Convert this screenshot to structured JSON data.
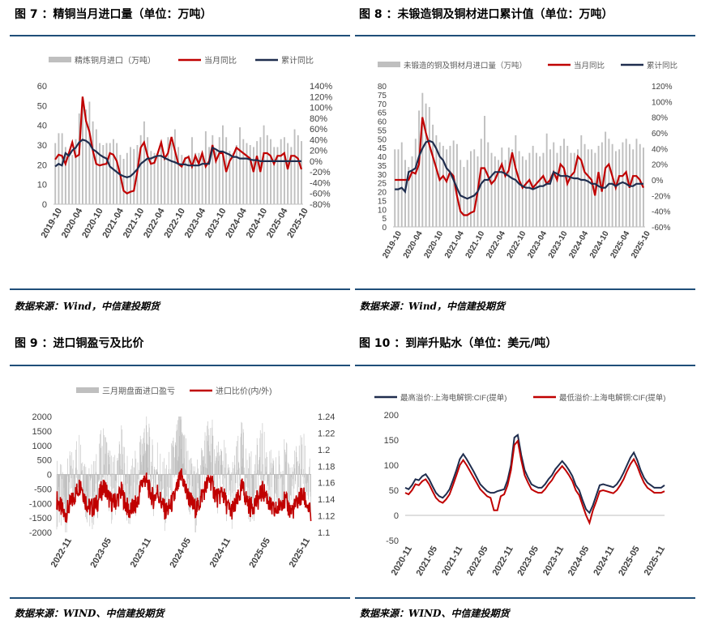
{
  "figures": [
    {
      "id": "fig7",
      "title": "图 7 ：精铜当月进口量（单位：万吨）",
      "source": "数据来源：Wind，中信建投期货"
    },
    {
      "id": "fig8",
      "title": "图 8 ：未锻造铜及铜材进口累计值（单位：万吨）",
      "source": "数据来源：Wind，中信建投期货"
    },
    {
      "id": "fig9",
      "title": "图 9 ：进口铜盈亏及比价",
      "source": "数据来源：WIND、中信建投期货"
    },
    {
      "id": "fig10",
      "title": "图 10 ：到岸升贴水（单位：美元/吨）",
      "source": "数据来源：WIND、中信建投期货"
    }
  ],
  "colors": {
    "rule": "#1f4e79",
    "bar": "#bfbfbf",
    "red": "#c00000",
    "navy": "#1f2d4e"
  },
  "chart_data": [
    {
      "type": "bar",
      "legend": [
        "精炼铜月进口（万吨）",
        "当月同比",
        "累计同比"
      ],
      "x_ticks": [
        "2019-10",
        "2020-04",
        "2020-10",
        "2021-04",
        "2021-10",
        "2022-04",
        "2022-10",
        "2023-04",
        "2023-10",
        "2024-04",
        "2024-10",
        "2025-04",
        "2025-10"
      ],
      "y_left_ticks": [
        "60",
        "50",
        "40",
        "30",
        "20",
        "10",
        "0"
      ],
      "y_right_ticks": [
        "140%",
        "120%",
        "100%",
        "80%",
        "60%",
        "40%",
        "20%",
        "0%",
        "-20%",
        "-40%",
        "-60%",
        "-80%"
      ],
      "y_left_range": [
        0,
        60
      ],
      "y_right_range": [
        -80,
        140
      ],
      "months": 73,
      "bars": [
        31,
        36,
        36,
        29,
        24,
        25,
        33,
        46,
        50,
        48,
        52,
        42,
        38,
        31,
        30,
        31,
        31,
        33,
        31,
        25,
        23,
        26,
        29,
        28,
        30,
        35,
        42,
        34,
        27,
        26,
        24,
        31,
        24,
        34,
        31,
        38,
        29,
        25,
        24,
        25,
        34,
        26,
        26,
        25,
        37,
        29,
        35,
        27,
        34,
        40,
        34,
        27,
        26,
        30,
        39,
        33,
        31,
        30,
        29,
        32,
        34,
        40,
        35,
        33,
        29,
        29,
        33,
        34,
        31,
        29,
        38,
        35,
        32
      ],
      "monthly_yoy": [
        3,
        12,
        10,
        -5,
        15,
        35,
        8,
        12,
        120,
        75,
        55,
        20,
        -5,
        -8,
        -6,
        -5,
        15,
        12,
        0,
        -25,
        -55,
        -60,
        -57,
        -55,
        -20,
        25,
        35,
        10,
        -5,
        -3,
        15,
        35,
        5,
        15,
        45,
        20,
        -5,
        -10,
        5,
        8,
        -10,
        10,
        -5,
        15,
        -10,
        0,
        30,
        0,
        15,
        15,
        -20,
        0,
        10,
        25,
        20,
        15,
        10,
        5,
        -20,
        10,
        -20,
        15,
        15,
        10,
        -5,
        10,
        10,
        15,
        -15,
        10,
        10,
        5,
        -15
      ],
      "cumulative_yoy": [
        -10,
        -5,
        -8,
        15,
        10,
        20,
        25,
        35,
        40,
        38,
        33,
        22,
        18,
        12,
        8,
        5,
        -10,
        -15,
        -20,
        -25,
        -28,
        -30,
        -28,
        -22,
        -15,
        -5,
        0,
        5,
        5,
        8,
        10,
        10,
        6,
        3,
        0,
        -2,
        -5,
        -6,
        -6,
        -8,
        -8,
        -8,
        -8,
        -5,
        -5,
        -5,
        25,
        22,
        18,
        18,
        15,
        12,
        8,
        8,
        5,
        5,
        5,
        3,
        2,
        2,
        0,
        0,
        0,
        0,
        0,
        0,
        0,
        0,
        0,
        0,
        0,
        0,
        0
      ]
    },
    {
      "type": "bar",
      "legend": [
        "未锻造的铜及铜材月进口量（万吨）",
        "当月同比",
        "累计同比"
      ],
      "x_ticks": [
        "2019-10",
        "2020-04",
        "2020-10",
        "2021-04",
        "2021-10",
        "2022-04",
        "2022-10",
        "2023-04",
        "2023-10",
        "2024-04",
        "2024-10",
        "2025-04",
        "2025-10"
      ],
      "y_left_ticks": [
        "80",
        "75",
        "70",
        "65",
        "60",
        "55",
        "50",
        "45",
        "40",
        "35",
        "30",
        "25",
        "20",
        "15",
        "10",
        "5",
        "0"
      ],
      "y_right_ticks": [
        "120%",
        "100%",
        "80%",
        "60%",
        "40%",
        "20%",
        "0%",
        "-20%",
        "-40%",
        "-60%"
      ],
      "y_left_range": [
        0,
        80
      ],
      "y_right_range": [
        -60,
        120
      ],
      "months": 73,
      "bars": [
        44,
        44,
        48,
        38,
        34,
        40,
        50,
        66,
        76,
        70,
        68,
        58,
        52,
        48,
        46,
        44,
        46,
        49,
        47,
        38,
        34,
        38,
        43,
        44,
        40,
        50,
        63,
        48,
        42,
        40,
        38,
        45,
        38,
        45,
        44,
        52,
        43,
        40,
        38,
        42,
        46,
        42,
        40,
        42,
        53,
        44,
        48,
        42,
        46,
        50,
        46,
        42,
        42,
        44,
        52,
        47,
        44,
        44,
        42,
        46,
        48,
        54,
        50,
        47,
        43,
        44,
        48,
        50,
        47,
        44,
        50,
        47,
        45
      ],
      "monthly_yoy": [
        0,
        0,
        0,
        0,
        0,
        10,
        8,
        20,
        80,
        60,
        45,
        30,
        15,
        0,
        5,
        -2,
        10,
        5,
        -20,
        -40,
        -45,
        -45,
        -42,
        -40,
        -15,
        15,
        15,
        5,
        -5,
        0,
        10,
        20,
        5,
        12,
        35,
        15,
        0,
        -10,
        -5,
        0,
        -10,
        -5,
        0,
        5,
        -5,
        0,
        10,
        0,
        20,
        15,
        -5,
        5,
        10,
        30,
        25,
        10,
        5,
        0,
        -20,
        10,
        -15,
        15,
        20,
        5,
        -10,
        5,
        5,
        10,
        -10,
        5,
        5,
        0,
        -10
      ],
      "cumulative_yoy": [
        -12,
        -12,
        -10,
        -15,
        10,
        12,
        15,
        30,
        40,
        48,
        50,
        48,
        40,
        30,
        25,
        15,
        10,
        0,
        -10,
        -20,
        -22,
        -24,
        -22,
        -20,
        -15,
        -5,
        0,
        0,
        5,
        10,
        10,
        10,
        8,
        5,
        2,
        0,
        -5,
        -8,
        -10,
        -10,
        -12,
        -10,
        -8,
        -8,
        -5,
        -5,
        10,
        8,
        5,
        5,
        5,
        3,
        2,
        2,
        0,
        0,
        -2,
        -5,
        -5,
        -8,
        -10,
        -10,
        -5,
        -5,
        -8,
        -5,
        -3,
        -5,
        -8,
        -8,
        -5,
        -5,
        -5
      ]
    },
    {
      "type": "bar",
      "legend": [
        "三月期盘面进口盈亏",
        "进口比价(内/外)"
      ],
      "x_ticks": [
        "2022-11",
        "2023-05",
        "2023-11",
        "2024-05",
        "2024-11",
        "2025-05",
        "2025-11"
      ],
      "y_left_ticks": [
        "2000",
        "1500",
        "1000",
        "500",
        "0",
        "-500",
        "-1000",
        "-1500",
        "-2000"
      ],
      "y_right_ticks": [
        "1.24",
        "1.22",
        "1.2",
        "1.18",
        "1.16",
        "1.14",
        "1.12",
        "1.1"
      ],
      "y_left_range": [
        -2000,
        2000
      ],
      "y_right_range": [
        1.1,
        1.24
      ],
      "profit_loss_profile": [
        -600,
        -900,
        -1200,
        -500,
        -300,
        200,
        800,
        -200,
        -900,
        -700,
        -400,
        300,
        600,
        -200,
        -600,
        -100,
        500,
        -300,
        -900,
        -600,
        -300,
        700,
        1200,
        400,
        -200,
        300,
        -500,
        -800,
        -300,
        200,
        900,
        1500,
        300,
        -400,
        -900,
        -700,
        200,
        600,
        1100,
        300,
        -200,
        400,
        -300,
        -800,
        -500,
        100,
        700,
        -100,
        -500,
        -300,
        100,
        500,
        200,
        -400,
        -600,
        -300,
        200,
        -200,
        -500,
        -300,
        100,
        300,
        -200,
        -900
      ],
      "price_ratio_profile": [
        1.14,
        1.13,
        1.12,
        1.13,
        1.14,
        1.15,
        1.16,
        1.14,
        1.13,
        1.13,
        1.135,
        1.15,
        1.155,
        1.14,
        1.135,
        1.14,
        1.15,
        1.135,
        1.125,
        1.13,
        1.135,
        1.16,
        1.165,
        1.15,
        1.14,
        1.15,
        1.135,
        1.125,
        1.13,
        1.14,
        1.155,
        1.17,
        1.15,
        1.14,
        1.13,
        1.13,
        1.145,
        1.155,
        1.165,
        1.15,
        1.14,
        1.15,
        1.135,
        1.125,
        1.13,
        1.14,
        1.155,
        1.14,
        1.13,
        1.135,
        1.14,
        1.15,
        1.145,
        1.13,
        1.125,
        1.13,
        1.14,
        1.135,
        1.125,
        1.13,
        1.14,
        1.145,
        1.135,
        1.12
      ]
    },
    {
      "type": "line",
      "legend": [
        "最高溢价:上海电解铜:CIF(提单)",
        "最低溢价:上海电解铜:CIF(提单)"
      ],
      "x_ticks": [
        "2020-11",
        "2021-05",
        "2021-11",
        "2022-05",
        "2022-11",
        "2023-05",
        "2023-11",
        "2024-05",
        "2024-11",
        "2025-05",
        "2025-11"
      ],
      "y_ticks": [
        "200",
        "150",
        "100",
        "50",
        "0",
        "-50"
      ],
      "y_range": [
        -50,
        200
      ],
      "max_premium": [
        55,
        52,
        60,
        72,
        70,
        78,
        82,
        72,
        58,
        45,
        38,
        35,
        42,
        52,
        70,
        90,
        112,
        122,
        112,
        100,
        88,
        75,
        62,
        55,
        48,
        45,
        45,
        48,
        50,
        52,
        70,
        100,
        155,
        160,
        120,
        90,
        75,
        62,
        58,
        55,
        55,
        62,
        72,
        80,
        92,
        100,
        108,
        100,
        90,
        78,
        60,
        50,
        30,
        12,
        5,
        20,
        40,
        60,
        62,
        60,
        58,
        56,
        62,
        72,
        85,
        100,
        115,
        125,
        110,
        90,
        75,
        65,
        60,
        55,
        55,
        55,
        60
      ],
      "min_premium": [
        45,
        42,
        50,
        62,
        60,
        68,
        72,
        62,
        48,
        35,
        28,
        25,
        32,
        42,
        60,
        80,
        100,
        110,
        100,
        88,
        76,
        64,
        52,
        45,
        38,
        35,
        10,
        10,
        38,
        42,
        60,
        90,
        140,
        148,
        110,
        80,
        65,
        52,
        48,
        45,
        45,
        52,
        62,
        70,
        82,
        90,
        98,
        90,
        80,
        68,
        50,
        40,
        20,
        0,
        -15,
        10,
        28,
        48,
        50,
        48,
        46,
        44,
        50,
        60,
        72,
        88,
        102,
        112,
        98,
        80,
        65,
        55,
        50,
        45,
        45,
        45,
        48
      ]
    }
  ]
}
